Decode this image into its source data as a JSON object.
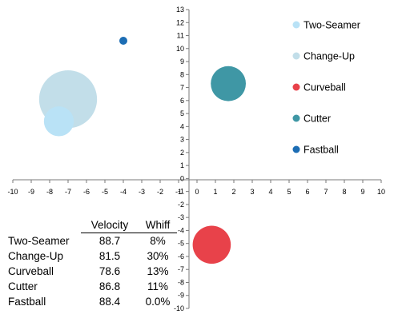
{
  "chart_data": {
    "type": "scatter",
    "xlim": [
      -10,
      10
    ],
    "ylim": [
      -10,
      13
    ],
    "x_ticks": [
      -10,
      -9,
      -8,
      -7,
      -6,
      -5,
      -4,
      -3,
      -2,
      -1,
      0,
      1,
      2,
      3,
      4,
      5,
      6,
      7,
      8,
      9,
      10
    ],
    "y_ticks": [
      -10,
      -9,
      -8,
      -7,
      -6,
      -5,
      -4,
      -3,
      -2,
      -1,
      0,
      1,
      2,
      3,
      4,
      5,
      6,
      7,
      8,
      9,
      10,
      11,
      12,
      13
    ],
    "grid": false,
    "legend_position": "right",
    "series": [
      {
        "name": "Two-Seamer",
        "x": -7.5,
        "y": 4.4,
        "size": 8,
        "color": "#b9e2f6"
      },
      {
        "name": "Change-Up",
        "x": -7.0,
        "y": 6.1,
        "size": 30,
        "color": "#c2dee9"
      },
      {
        "name": "Curveball",
        "x": 0.8,
        "y": -5.1,
        "size": 13,
        "color": "#e8424a"
      },
      {
        "name": "Cutter",
        "x": 1.7,
        "y": 7.3,
        "size": 11,
        "color": "#3f97a5"
      },
      {
        "name": "Fastball",
        "x": -4.0,
        "y": 10.6,
        "size": 0.0,
        "color": "#1c6db4"
      }
    ]
  },
  "table": {
    "headers": [
      "",
      "Velocity",
      "Whiff"
    ],
    "rows": [
      {
        "name": "Two-Seamer",
        "velocity": "88.7",
        "whiff": "8%"
      },
      {
        "name": "Change-Up",
        "velocity": "81.5",
        "whiff": "30%"
      },
      {
        "name": "Curveball",
        "velocity": "78.6",
        "whiff": "13%"
      },
      {
        "name": "Cutter",
        "velocity": "86.8",
        "whiff": "11%"
      },
      {
        "name": "Fastball",
        "velocity": "88.4",
        "whiff": "0.0%"
      }
    ]
  }
}
